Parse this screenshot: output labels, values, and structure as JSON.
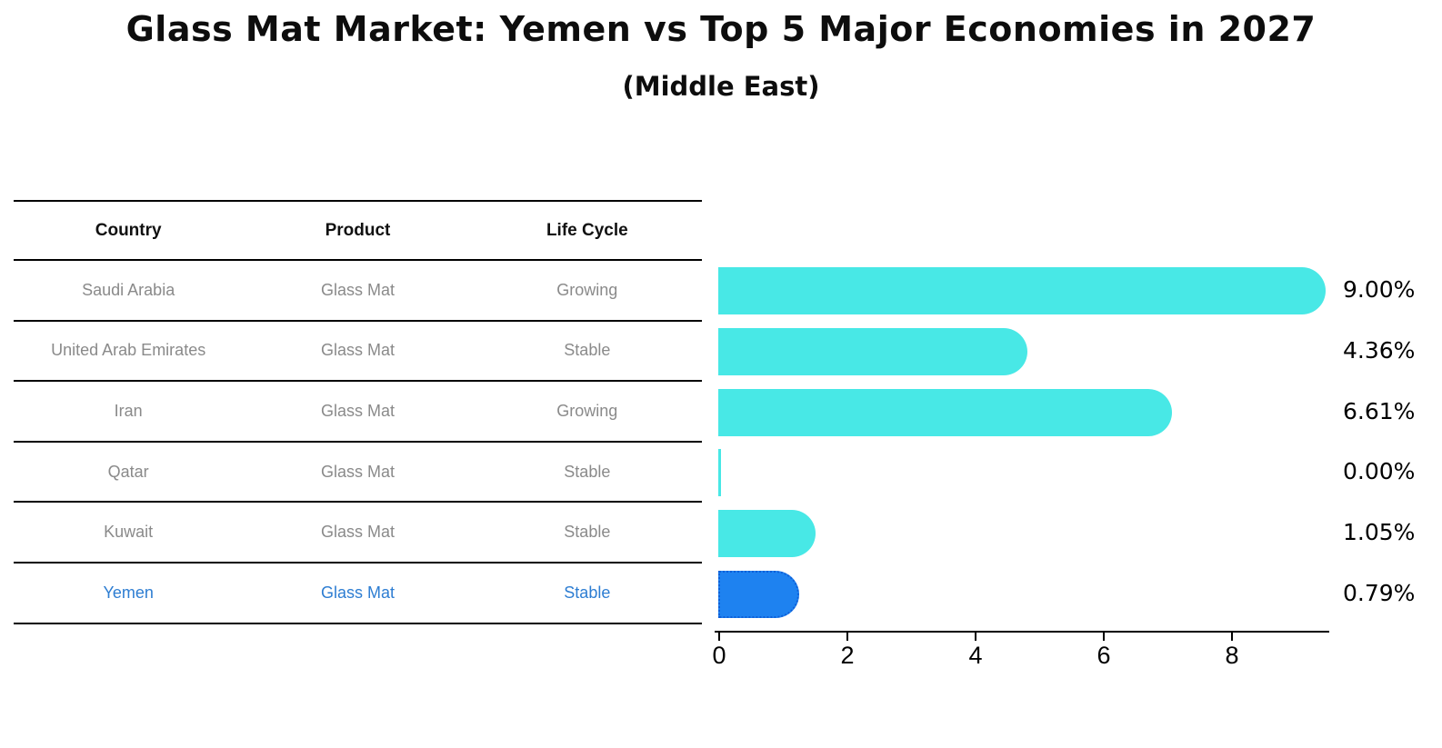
{
  "title": "Glass Mat Market: Yemen vs Top 5 Major Economies in 2027",
  "subtitle": "(Middle East)",
  "table": {
    "headers": [
      "Country",
      "Product",
      "Life Cycle"
    ],
    "rows": [
      {
        "country": "Saudi Arabia",
        "product": "Glass Mat",
        "life_cycle": "Growing",
        "highlight": false
      },
      {
        "country": "United Arab Emirates",
        "product": "Glass Mat",
        "life_cycle": "Stable",
        "highlight": false
      },
      {
        "country": "Iran",
        "product": "Glass Mat",
        "life_cycle": "Growing",
        "highlight": false
      },
      {
        "country": "Qatar",
        "product": "Glass Mat",
        "life_cycle": "Stable",
        "highlight": false
      },
      {
        "country": "Kuwait",
        "product": "Glass Mat",
        "life_cycle": "Stable",
        "highlight": false
      },
      {
        "country": "Yemen",
        "product": "Glass Mat",
        "life_cycle": "Stable",
        "highlight": true
      }
    ]
  },
  "chart_data": {
    "type": "bar",
    "orientation": "horizontal",
    "title": "Glass Mat Market: Yemen vs Top 5 Major Economies in 2027 (Middle East)",
    "categories": [
      "Saudi Arabia",
      "United Arab Emirates",
      "Iran",
      "Qatar",
      "Kuwait",
      "Yemen"
    ],
    "values": [
      9.0,
      4.36,
      6.61,
      0.0,
      1.05,
      0.79
    ],
    "value_labels": [
      "9.00%",
      "4.36%",
      "6.61%",
      "0.00%",
      "1.05%",
      "0.79%"
    ],
    "x_ticks": [
      0,
      2,
      4,
      6,
      8
    ],
    "xlim": [
      0,
      9.6
    ],
    "grid": false,
    "legend_position": "none",
    "bar_color": "#48E8E6",
    "highlight_index": 5,
    "highlight_color": "#1E82F0",
    "highlight_border_color": "#0E5FD8",
    "highlight_text_color": "#2D7DD2"
  }
}
